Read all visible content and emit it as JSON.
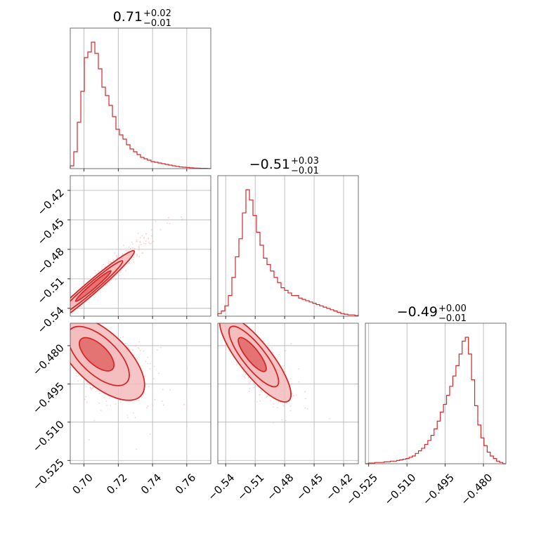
{
  "colors": {
    "accent": "#d62728",
    "fill_inner": "#e06666",
    "fill_outer": "#f4bcbc",
    "grid": "#b0b0b0",
    "frame": "#4d4d4d"
  },
  "titles": [
    {
      "value": "0.71",
      "plus": "+0.02",
      "minus": "−0.01"
    },
    {
      "value": "−0.51",
      "plus": "+0.03",
      "minus": "−0.01"
    },
    {
      "value": "−0.49",
      "plus": "+0.00",
      "minus": "−0.01"
    }
  ],
  "chart_data": {
    "type": "corner",
    "parameters": [
      {
        "range": [
          0.692,
          0.774
        ],
        "ticks": [
          0.7,
          0.72,
          0.74,
          0.76
        ],
        "tick_labels": [
          "0.70",
          "0.72",
          "0.74",
          "0.76"
        ]
      },
      {
        "range": [
          -0.548,
          -0.405
        ],
        "ticks": [
          -0.54,
          -0.51,
          -0.48,
          -0.45,
          -0.42
        ],
        "tick_labels": [
          "−0.54",
          "−0.51",
          "−0.48",
          "−0.45",
          "−0.42"
        ]
      },
      {
        "range": [
          -0.5263,
          -0.4712
        ],
        "ticks": [
          -0.525,
          -0.51,
          -0.495,
          -0.48
        ],
        "tick_labels": [
          "−0.525",
          "−0.510",
          "−0.495",
          "−0.480"
        ]
      }
    ],
    "diag_tick_labels": [
      [
        "0.70",
        "0.72",
        "0.74",
        "0.76"
      ],
      [
        "−0.54",
        "−0.51",
        "−0.48",
        "−0.45",
        "−0.42"
      ],
      [
        "−0.525",
        "−0.510",
        "−0.495",
        "−0.480"
      ]
    ],
    "histograms": [
      {
        "bins": 40,
        "density": [
          0.02,
          0.12,
          0.33,
          0.55,
          0.79,
          0.83,
          0.9,
          0.82,
          0.71,
          0.58,
          0.52,
          0.45,
          0.37,
          0.28,
          0.24,
          0.21,
          0.17,
          0.14,
          0.12,
          0.1,
          0.08,
          0.07,
          0.06,
          0.05,
          0.045,
          0.04,
          0.035,
          0.03,
          0.025,
          0.02,
          0.016,
          0.012,
          0.01,
          0.008,
          0.006,
          0.004,
          0.003,
          0.002,
          0.002,
          0.001
        ]
      },
      {
        "bins": 40,
        "density": [
          0.02,
          0.04,
          0.08,
          0.16,
          0.3,
          0.46,
          0.6,
          0.8,
          0.98,
          0.9,
          0.78,
          0.65,
          0.55,
          0.45,
          0.4,
          0.35,
          0.3,
          0.26,
          0.22,
          0.2,
          0.18,
          0.16,
          0.16,
          0.14,
          0.13,
          0.12,
          0.11,
          0.1,
          0.09,
          0.08,
          0.07,
          0.06,
          0.05,
          0.04,
          0.03,
          0.02,
          0.015,
          0.01,
          0.01,
          0.005
        ]
      },
      {
        "bins": 45,
        "density": [
          0.0,
          0.005,
          0.005,
          0.01,
          0.01,
          0.01,
          0.015,
          0.015,
          0.02,
          0.02,
          0.025,
          0.03,
          0.035,
          0.04,
          0.05,
          0.06,
          0.08,
          0.1,
          0.12,
          0.15,
          0.18,
          0.22,
          0.27,
          0.33,
          0.4,
          0.46,
          0.53,
          0.6,
          0.68,
          0.76,
          0.85,
          0.95,
          0.98,
          0.85,
          0.65,
          0.45,
          0.3,
          0.2,
          0.14,
          0.09,
          0.06,
          0.04,
          0.02,
          0.01,
          0.0
        ]
      }
    ],
    "pairs": [
      {
        "x_param": 0,
        "y_param": 1,
        "mean": [
          0.707,
          -0.515
        ],
        "std": [
          0.01,
          0.015
        ],
        "corr": 0.97
      },
      {
        "x_param": 0,
        "y_param": 2,
        "mean": [
          0.706,
          -0.4825
        ],
        "std": [
          0.01,
          0.0065
        ],
        "corr": -0.55
      },
      {
        "x_param": 1,
        "y_param": 2,
        "mean": [
          -0.515,
          -0.4825
        ],
        "std": [
          0.014,
          0.0065
        ],
        "corr": -0.78
      }
    ],
    "contour_levels_sigma": [
      0.9,
      1.6,
      2.3
    ],
    "grid": true,
    "legend": "none"
  }
}
